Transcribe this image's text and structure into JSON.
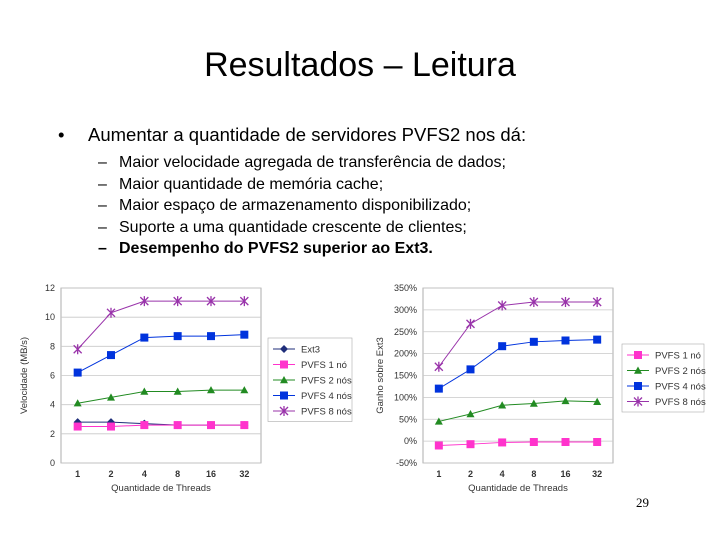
{
  "slide": {
    "title": "Resultados – Leitura",
    "bullet_main": "Aumentar a quantidade de servidores PVFS2 nos dá:",
    "bullet_marker": "•",
    "sub_marker": "–",
    "sub_bullets": [
      "Maior velocidade agregada de transferência de dados;",
      "Maior quantidade de memória cache;",
      "Maior espaço de armazenamento disponibilizado;",
      "Suporte a uma quantidade crescente de clientes;",
      "Desempenho do PVFS2 superior ao Ext3."
    ],
    "page_number": "29"
  },
  "colors": {
    "Ext3": "#1f2e7a",
    "PVFS 1 nó": "#ff33cc",
    "PVFS 2 nós": "#228b22",
    "PVFS 4 nós": "#0033dd",
    "PVFS 8 nós": "#9933aa"
  },
  "chart_data": [
    {
      "type": "line",
      "xlabel": "Quantidade de Threads",
      "ylabel": "Velocidade (MB/s)",
      "categories": [
        "1",
        "2",
        "4",
        "8",
        "16",
        "32"
      ],
      "ylim": [
        0,
        12
      ],
      "yticks": [
        "0",
        "2",
        "4",
        "6",
        "8",
        "10",
        "12"
      ],
      "grid": true,
      "legend": "right",
      "series": [
        {
          "name": "Ext3",
          "marker": "diamond",
          "values": [
            2.8,
            2.8,
            2.7,
            2.6,
            2.6,
            2.6
          ]
        },
        {
          "name": "PVFS 1 nó",
          "marker": "square",
          "values": [
            2.5,
            2.5,
            2.6,
            2.6,
            2.6,
            2.6
          ]
        },
        {
          "name": "PVFS 2 nós",
          "marker": "triangle",
          "values": [
            4.1,
            4.5,
            4.9,
            4.9,
            5.0,
            5.0
          ]
        },
        {
          "name": "PVFS 4 nós",
          "marker": "square",
          "values": [
            6.2,
            7.4,
            8.6,
            8.7,
            8.7,
            8.8
          ]
        },
        {
          "name": "PVFS 8 nós",
          "marker": "star",
          "values": [
            7.8,
            10.3,
            11.1,
            11.1,
            11.1,
            11.1
          ]
        }
      ]
    },
    {
      "type": "line",
      "xlabel": "Quantidade de Threads",
      "ylabel": "Ganho sobre Ext3",
      "categories": [
        "1",
        "2",
        "4",
        "8",
        "16",
        "32"
      ],
      "ylim": [
        -50,
        350
      ],
      "yticks": [
        "-50%",
        "0%",
        "50%",
        "100%",
        "150%",
        "200%",
        "250%",
        "300%",
        "350%"
      ],
      "grid": true,
      "legend": "right",
      "series": [
        {
          "name": "PVFS 1 nó",
          "marker": "square",
          "values": [
            -10,
            -7,
            -3,
            -2,
            -2,
            -2
          ]
        },
        {
          "name": "PVFS 2 nós",
          "marker": "triangle",
          "values": [
            45,
            62,
            82,
            86,
            92,
            90
          ]
        },
        {
          "name": "PVFS 4 nós",
          "marker": "square",
          "values": [
            120,
            164,
            217,
            227,
            230,
            232
          ]
        },
        {
          "name": "PVFS 8 nós",
          "marker": "star",
          "values": [
            170,
            268,
            310,
            318,
            318,
            318
          ]
        }
      ]
    }
  ]
}
